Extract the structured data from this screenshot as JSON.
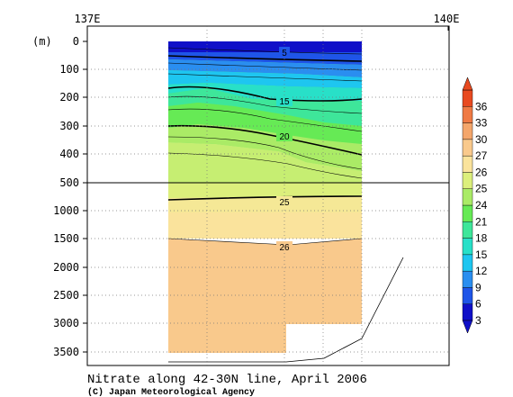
{
  "chart_data": {
    "type": "heatmap",
    "title": "Nitrate along 42-30N line, April 2006",
    "credit": "(C) Japan Meteorological Agency",
    "x_unit_label": "",
    "y_unit_label": "(m)",
    "x_ticks": [
      "137E",
      "140E"
    ],
    "y_ticks_upper": [
      "0",
      "100",
      "200",
      "300",
      "400",
      "500"
    ],
    "y_ticks_lower": [
      "1000",
      "1500",
      "2000",
      "2500",
      "3000",
      "3500"
    ],
    "colorbar": {
      "levels": [
        "3",
        "6",
        "9",
        "12",
        "15",
        "18",
        "21",
        "24",
        "25",
        "26",
        "27",
        "30",
        "33",
        "36"
      ],
      "colors": [
        "#1010c8",
        "#1f55e8",
        "#2a8ef0",
        "#1ec6f0",
        "#28e0c8",
        "#3ee69a",
        "#66ea55",
        "#aaeb66",
        "#dcef7c",
        "#fae39c",
        "#f9c98c",
        "#f4a66b",
        "#ef7a44",
        "#e84a20"
      ]
    },
    "contour_labels": [
      "5",
      "15",
      "20",
      "25",
      "26"
    ]
  }
}
